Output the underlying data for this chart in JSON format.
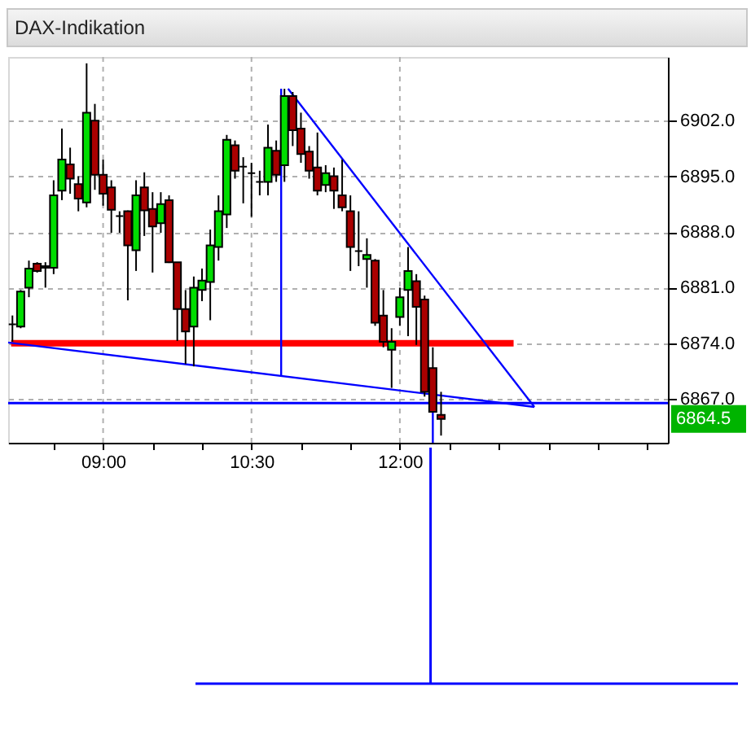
{
  "chart_data": {
    "type": "candlestick",
    "title": "DAX-Indikation",
    "x": [
      8.0833,
      8.1667,
      8.25,
      8.3333,
      8.4167,
      8.5,
      8.5833,
      8.6667,
      8.75,
      8.8333,
      8.9167,
      9,
      9.0833,
      9.1667,
      9.25,
      9.3333,
      9.4167,
      9.5,
      9.5833,
      9.6667,
      9.75,
      9.8333,
      9.9167,
      10,
      10.0833,
      10.1667,
      10.25,
      10.3333,
      10.4167,
      10.5,
      10.5833,
      10.6667,
      10.75,
      10.8333,
      10.9167,
      11,
      11.0833,
      11.1667,
      11.25,
      11.3333,
      11.4167,
      11.5,
      11.5833,
      11.6667,
      11.75,
      11.8333,
      11.9167,
      12,
      12.0833,
      12.1667,
      12.25,
      12.3333,
      12.4167
    ],
    "ohlc": [
      [
        6876.4,
        6877.5,
        6874.2,
        6876.4
      ],
      [
        6876.1,
        6880.7,
        6875.9,
        6880.5
      ],
      [
        6881.0,
        6884.4,
        6879.8,
        6883.4
      ],
      [
        6884.0,
        6884.2,
        6882.9,
        6883.1
      ],
      [
        6883.5,
        6884.2,
        6881.0,
        6883.7
      ],
      [
        6883.5,
        6894.5,
        6882.7,
        6892.6
      ],
      [
        6893.2,
        6901.0,
        6892.0,
        6897.1
      ],
      [
        6896.5,
        6898.6,
        6892.8,
        6894.7
      ],
      [
        6894.0,
        6895.0,
        6890.6,
        6892.2
      ],
      [
        6891.7,
        6909.2,
        6891.1,
        6903.0
      ],
      [
        6902.0,
        6904.1,
        6893.3,
        6895.2
      ],
      [
        6895.2,
        6897.1,
        6891.3,
        6892.8
      ],
      [
        6893.6,
        6894.5,
        6887.9,
        6890.8
      ],
      [
        6890.0,
        6890.6,
        6887.9,
        6890.0
      ],
      [
        6890.6,
        6890.7,
        6879.4,
        6886.3
      ],
      [
        6885.7,
        6894.5,
        6883.1,
        6892.6
      ],
      [
        6893.6,
        6895.5,
        6887.5,
        6890.7
      ],
      [
        6890.9,
        6893.0,
        6882.9,
        6888.7
      ],
      [
        6889.1,
        6893.0,
        6887.9,
        6891.5
      ],
      [
        6892.0,
        6892.6,
        6884.1,
        6884.2
      ],
      [
        6884.2,
        6884.2,
        6874.3,
        6878.3
      ],
      [
        6878.3,
        6880.7,
        6871.4,
        6875.5
      ],
      [
        6876.1,
        6882.4,
        6871.1,
        6881.0
      ],
      [
        6880.7,
        6883.4,
        6879.3,
        6881.9
      ],
      [
        6881.7,
        6888.3,
        6876.9,
        6886.3
      ],
      [
        6886.1,
        6892.6,
        6884.4,
        6890.6
      ],
      [
        6890.2,
        6900.2,
        6888.5,
        6899.6
      ],
      [
        6898.9,
        6899.5,
        6894.7,
        6895.7
      ],
      [
        6896.2,
        6897.4,
        6891.6,
        6896.2
      ],
      [
        6895.4,
        6896.7,
        6889.9,
        6895.4
      ],
      [
        6894.3,
        6895.7,
        6892.6,
        6894.3
      ],
      [
        6894.3,
        6901.5,
        6892.6,
        6898.6
      ],
      [
        6898.2,
        6899.5,
        6894.3,
        6895.2
      ],
      [
        6896.4,
        6906.0,
        6894.3,
        6905.1
      ],
      [
        6905.1,
        6905.6,
        6898.8,
        6900.8
      ],
      [
        6901.0,
        6903.0,
        6896.7,
        6897.8
      ],
      [
        6898.1,
        6898.8,
        6894.7,
        6895.7
      ],
      [
        6896.1,
        6900.5,
        6892.6,
        6893.2
      ],
      [
        6893.9,
        6896.4,
        6893.0,
        6895.4
      ],
      [
        6895.0,
        6896.1,
        6890.9,
        6893.2
      ],
      [
        6892.6,
        6897.1,
        6890.6,
        6891.1
      ],
      [
        6890.6,
        6892.6,
        6883.1,
        6886.1
      ],
      [
        6885.6,
        6890.6,
        6883.7,
        6885.6
      ],
      [
        6884.6,
        6887.2,
        6881.0,
        6885.1
      ],
      [
        6884.4,
        6884.6,
        6876.2,
        6876.6
      ],
      [
        6877.5,
        6880.7,
        6873.5,
        6874.2
      ],
      [
        6873.2,
        6875.9,
        6868.4,
        6874.2
      ],
      [
        6877.3,
        6881.0,
        6876.2,
        6879.8
      ],
      [
        6880.7,
        6886.1,
        6874.9,
        6883.1
      ],
      [
        6881.8,
        6882.7,
        6873.8,
        6878.6
      ],
      [
        6879.5,
        6880.0,
        6867.3,
        6867.9
      ],
      [
        6870.9,
        6873.5,
        6865.4,
        6865.4
      ],
      [
        6865.0,
        6867.9,
        6862.4,
        6864.5
      ]
    ],
    "colors": [
      "#000000",
      "#00dd00",
      "#00dd00",
      "#aa0000",
      "#00dd00",
      "#00dd00",
      "#00dd00",
      "#aa0000",
      "#aa0000",
      "#00dd00",
      "#aa0000",
      "#aa0000",
      "#aa0000",
      "#000000",
      "#aa0000",
      "#00dd00",
      "#aa0000",
      "#aa0000",
      "#00dd00",
      "#aa0000",
      "#aa0000",
      "#aa0000",
      "#00dd00",
      "#00dd00",
      "#00dd00",
      "#00dd00",
      "#00dd00",
      "#aa0000",
      "#000000",
      "#000000",
      "#000000",
      "#00dd00",
      "#aa0000",
      "#00dd00",
      "#aa0000",
      "#aa0000",
      "#aa0000",
      "#aa0000",
      "#00dd00",
      "#aa0000",
      "#aa0000",
      "#aa0000",
      "#000000",
      "#00dd00",
      "#aa0000",
      "#aa0000",
      "#00dd00",
      "#00dd00",
      "#00dd00",
      "#aa0000",
      "#aa0000",
      "#aa0000",
      "#aa0000"
    ],
    "series": [
      {
        "type": "line",
        "color": "#ff0000",
        "x": [
          8.07,
          13.15
        ],
        "values": [
          6874.0,
          6874.0
        ]
      },
      {
        "type": "line",
        "color": "#0000ff",
        "x": [
          8.04,
          13.36
        ],
        "values": [
          6874.1,
          6866.0
        ]
      },
      {
        "type": "line",
        "color": "#0000ff",
        "x": [
          10.87,
          13.36
        ],
        "values": [
          6906.0,
          6866.0
        ]
      },
      {
        "type": "line",
        "color": "#0000ff",
        "x": [
          10.8,
          10.8
        ],
        "values": [
          6906.0,
          6869.9
        ]
      },
      {
        "type": "line",
        "color": "#0000ff",
        "x": [
          12.3333,
          12.3333
        ],
        "values": [
          6867.3,
          6861.5
        ]
      }
    ],
    "ref_lines": [
      {
        "axis": "y",
        "value": 6866.5,
        "color": "#0000ff"
      }
    ],
    "annotations": [
      "6864.5"
    ],
    "xlim": [
      8.04,
      14.71
    ],
    "xticks": [
      {
        "value": 8.5,
        "label": null
      },
      {
        "value": 9,
        "label": "09:00"
      },
      {
        "value": 9.5,
        "label": null
      },
      {
        "value": 10,
        "label": null
      },
      {
        "value": 10.5,
        "label": "10:30"
      },
      {
        "value": 11,
        "label": null
      },
      {
        "value": 11.5,
        "label": null
      },
      {
        "value": 12,
        "label": "12:00"
      },
      {
        "value": 12.5,
        "label": null
      },
      {
        "value": 13,
        "label": null
      },
      {
        "value": 13.5,
        "label": null
      },
      {
        "value": 14,
        "label": null
      },
      {
        "value": 14.5,
        "label": null
      }
    ],
    "ylim": [
      6861.5,
      6910
    ],
    "yticks": [
      {
        "value": 6867,
        "label": "6867.0"
      },
      {
        "value": 6874,
        "label": "6874.0"
      },
      {
        "value": 6881,
        "label": "6881.0"
      },
      {
        "value": 6888,
        "label": "6888.0"
      },
      {
        "value": 6895,
        "label": "6895.0"
      },
      {
        "value": 6902,
        "label": "6902.0"
      }
    ],
    "grid": true
  }
}
